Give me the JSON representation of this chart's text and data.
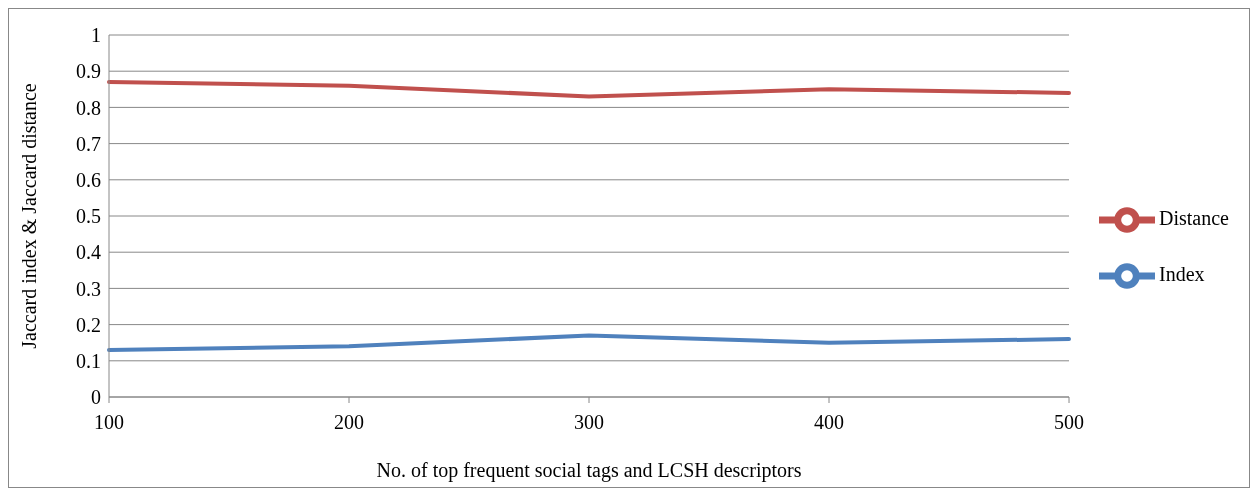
{
  "chart_data": {
    "type": "line",
    "xlabel": "No. of top frequent social tags and LCSH descriptors",
    "ylabel": "Jaccard index & Jaccard distance",
    "categories": [
      "100",
      "200",
      "300",
      "400",
      "500"
    ],
    "series": [
      {
        "name": "Index",
        "color": "#4f81bd",
        "values": [
          0.13,
          0.14,
          0.17,
          0.15,
          0.16
        ]
      },
      {
        "name": "Distance",
        "color": "#c0504d",
        "values": [
          0.87,
          0.86,
          0.83,
          0.85,
          0.84
        ]
      }
    ],
    "ylim": [
      0,
      1
    ],
    "yticks": [
      0,
      0.1,
      0.2,
      0.3,
      0.4,
      0.5,
      0.6,
      0.7,
      0.8,
      0.9,
      1
    ],
    "grid": "y",
    "legend": "right",
    "marker": "none",
    "line_style": "solid"
  }
}
